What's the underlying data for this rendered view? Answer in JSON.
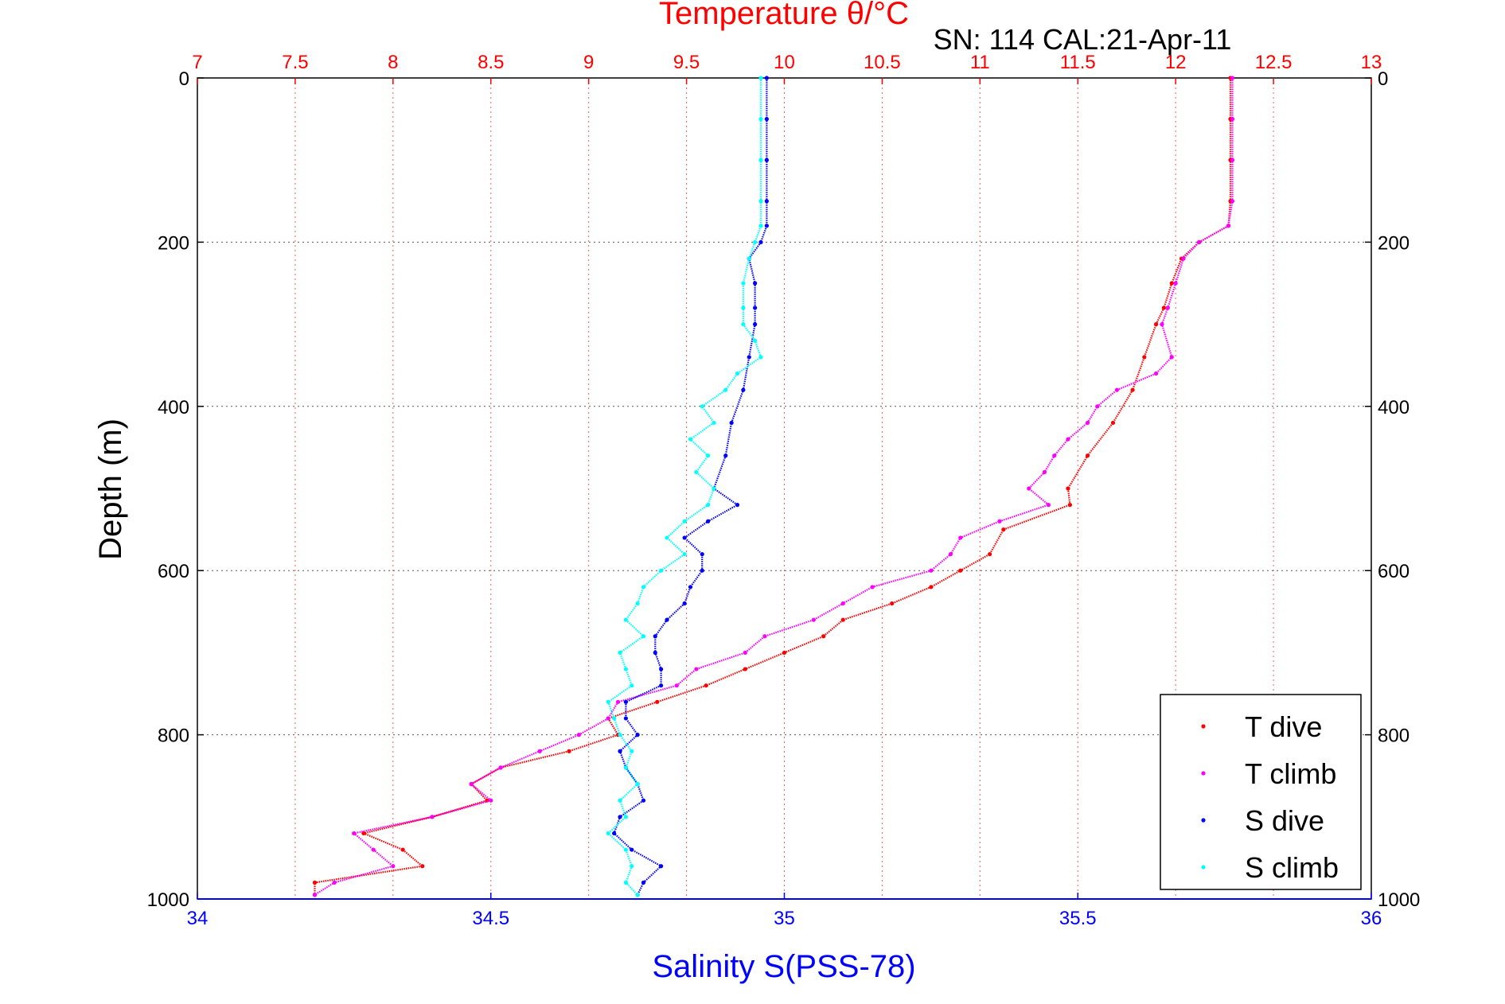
{
  "chart_data": {
    "type": "scatter",
    "title": "Temperature θ/°C",
    "subtitle": "SN: 114  CAL:21-Apr-11",
    "ylabel": "Depth (m)",
    "xlabel": "Salinity S(PSS-78)",
    "y": {
      "range": [
        0,
        1000
      ],
      "reversed": true,
      "ticks": [
        "0",
        "200",
        "400",
        "600",
        "800",
        "1000"
      ],
      "ticks_mirrored_right": true
    },
    "x_top_temperature": {
      "range": [
        7,
        13
      ],
      "ticks": [
        "7",
        "7.5",
        "8",
        "8.5",
        "9",
        "9.5",
        "10",
        "10.5",
        "11",
        "11.5",
        "12",
        "12.5",
        "13"
      ],
      "color": "#ff0000",
      "grid": "dotted"
    },
    "x_bottom_salinity": {
      "range": [
        34,
        36
      ],
      "ticks": [
        "34",
        "34.5",
        "35",
        "35.5",
        "36"
      ],
      "color": "#0000ff"
    },
    "legend": {
      "position": "bottom-right",
      "entries": [
        "T dive",
        "T climb",
        "S dive",
        "S climb"
      ]
    },
    "series": [
      {
        "name": "T dive",
        "axis": "temperature",
        "color": "#ff0000",
        "depth": [
          0,
          50,
          100,
          150,
          180,
          200,
          220,
          250,
          280,
          300,
          340,
          380,
          420,
          460,
          500,
          520,
          550,
          580,
          600,
          620,
          640,
          660,
          680,
          700,
          720,
          740,
          760,
          780,
          800,
          820,
          840,
          860,
          880,
          900,
          920,
          940,
          960,
          980,
          995
        ],
        "values": [
          12.28,
          12.28,
          12.28,
          12.28,
          12.27,
          12.12,
          12.03,
          11.98,
          11.94,
          11.9,
          11.84,
          11.78,
          11.68,
          11.55,
          11.45,
          11.46,
          11.12,
          11.05,
          10.9,
          10.75,
          10.55,
          10.3,
          10.2,
          10.0,
          9.8,
          9.6,
          9.35,
          9.1,
          9.15,
          8.9,
          8.55,
          8.4,
          8.48,
          8.2,
          7.85,
          8.05,
          8.15,
          7.6,
          7.6
        ]
      },
      {
        "name": "T climb",
        "axis": "temperature",
        "color": "#ff00ff",
        "depth": [
          0,
          50,
          100,
          150,
          180,
          200,
          220,
          250,
          280,
          300,
          340,
          360,
          380,
          400,
          420,
          440,
          460,
          480,
          500,
          520,
          540,
          560,
          580,
          600,
          620,
          640,
          660,
          680,
          700,
          720,
          740,
          760,
          780,
          800,
          820,
          840,
          860,
          880,
          900,
          920,
          940,
          960,
          980,
          995
        ],
        "values": [
          12.29,
          12.29,
          12.29,
          12.29,
          12.27,
          12.12,
          12.04,
          12.0,
          11.96,
          11.93,
          11.98,
          11.9,
          11.7,
          11.6,
          11.55,
          11.45,
          11.38,
          11.33,
          11.25,
          11.35,
          11.1,
          10.9,
          10.85,
          10.75,
          10.45,
          10.3,
          10.15,
          9.9,
          9.8,
          9.55,
          9.45,
          9.15,
          9.1,
          8.95,
          8.75,
          8.55,
          8.4,
          8.5,
          8.2,
          7.8,
          7.9,
          8.0,
          7.7,
          7.6
        ]
      },
      {
        "name": "S dive",
        "axis": "salinity",
        "color": "#0000ff",
        "depth": [
          0,
          50,
          100,
          150,
          180,
          200,
          220,
          250,
          280,
          300,
          340,
          380,
          420,
          460,
          500,
          520,
          540,
          560,
          580,
          600,
          620,
          640,
          660,
          680,
          700,
          720,
          740,
          760,
          780,
          800,
          820,
          840,
          860,
          880,
          900,
          920,
          940,
          960,
          980,
          995
        ],
        "values": [
          34.97,
          34.97,
          34.97,
          34.97,
          34.97,
          34.96,
          34.94,
          34.95,
          34.95,
          34.95,
          34.94,
          34.93,
          34.91,
          34.9,
          34.88,
          34.92,
          34.87,
          34.83,
          34.86,
          34.86,
          34.84,
          34.83,
          34.8,
          34.78,
          34.78,
          34.79,
          34.79,
          34.73,
          34.73,
          34.75,
          34.72,
          34.73,
          34.75,
          34.76,
          34.72,
          34.71,
          34.74,
          34.79,
          34.76,
          34.75
        ]
      },
      {
        "name": "S climb",
        "axis": "salinity",
        "color": "#00ffff",
        "depth": [
          0,
          50,
          100,
          150,
          180,
          200,
          220,
          250,
          280,
          300,
          320,
          340,
          360,
          380,
          400,
          420,
          440,
          460,
          480,
          500,
          520,
          540,
          560,
          580,
          600,
          620,
          640,
          660,
          680,
          700,
          720,
          740,
          760,
          780,
          800,
          820,
          840,
          860,
          880,
          900,
          920,
          940,
          960,
          980,
          995
        ],
        "values": [
          34.96,
          34.96,
          34.96,
          34.96,
          34.96,
          34.95,
          34.94,
          34.93,
          34.93,
          34.93,
          34.95,
          34.96,
          34.92,
          34.9,
          34.86,
          34.88,
          34.84,
          34.87,
          34.85,
          34.88,
          34.87,
          34.83,
          34.8,
          34.83,
          34.79,
          34.76,
          34.75,
          34.73,
          34.76,
          34.72,
          34.73,
          34.74,
          34.7,
          34.71,
          34.72,
          34.74,
          34.73,
          34.75,
          34.72,
          34.73,
          34.7,
          34.73,
          34.74,
          34.73,
          34.75
        ]
      }
    ]
  }
}
